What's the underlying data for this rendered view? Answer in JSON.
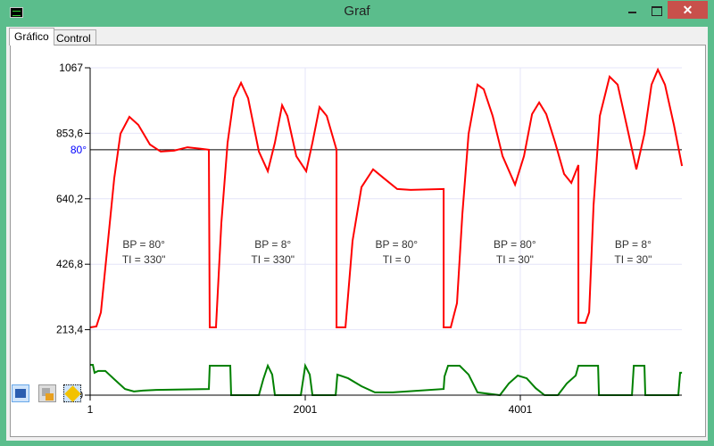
{
  "window": {
    "title": "Graf",
    "close": "✕"
  },
  "tabs": [
    {
      "label": "Gráfico"
    },
    {
      "label": "Control"
    }
  ],
  "toolbar": [
    "arrow-right-icon",
    "copy-icon",
    "export-icon"
  ],
  "colors": {
    "pv": "#ff0000",
    "output": "#008000",
    "setpoint": "#000000",
    "setpoint_label": "#0000ff"
  },
  "chart_data": {
    "type": "line",
    "x_ticks": [
      "1",
      "2001",
      "4001"
    ],
    "y_ticks": [
      "0",
      "213,4",
      "426,8",
      "640,2",
      "853,6",
      "1067"
    ],
    "xlim": [
      1,
      5504
    ],
    "ylim": [
      0,
      1067
    ],
    "grid": true,
    "setpoint": {
      "label": "80°",
      "value": 800
    },
    "annotations": [
      {
        "lines": [
          "BP = 80°",
          "TI = 330\""
        ],
        "x": 500
      },
      {
        "lines": [
          "BP = 8°",
          "TI = 330\""
        ],
        "x": 1700
      },
      {
        "lines": [
          "BP = 80°",
          "TI = 0"
        ],
        "x": 2850
      },
      {
        "lines": [
          "BP = 80°",
          "TI = 30\""
        ],
        "x": 3950
      },
      {
        "lines": [
          "BP = 8°",
          "TI = 30\""
        ],
        "x": 5050
      }
    ],
    "series": [
      {
        "name": "pv",
        "x": [
          1,
          59,
          101,
          159,
          225,
          283,
          366,
          449,
          557,
          657,
          781,
          906,
          1030,
          1105,
          1113,
          1171,
          1221,
          1279,
          1337,
          1404,
          1470,
          1570,
          1653,
          1719,
          1786,
          1835,
          1918,
          2010,
          2068,
          2134,
          2201,
          2292,
          2292,
          2375,
          2441,
          2524,
          2632,
          2732,
          2856,
          2981,
          3288,
          3288,
          3354,
          3412,
          3462,
          3520,
          3603,
          3661,
          3744,
          3836,
          3952,
          4035,
          4110,
          4176,
          4242,
          4325,
          4408,
          4475,
          4541,
          4541,
          4607,
          4641,
          4682,
          4740,
          4831,
          4906,
          4989,
          5080,
          5155,
          5221,
          5280,
          5346,
          5429,
          5504
        ],
        "y": [
          221,
          224,
          270,
          474,
          707,
          852,
          907,
          881,
          817,
          794,
          797,
          808,
          803,
          800,
          221,
          221,
          561,
          823,
          968,
          1018,
          968,
          794,
          730,
          823,
          945,
          910,
          779,
          730,
          823,
          939,
          910,
          800,
          221,
          221,
          503,
          678,
          736,
          707,
          672,
          669,
          672,
          221,
          221,
          300,
          590,
          852,
          1012,
          997,
          910,
          779,
          686,
          779,
          916,
          954,
          916,
          823,
          721,
          692,
          750,
          236,
          236,
          270,
          619,
          910,
          1038,
          1012,
          881,
          736,
          852,
          1012,
          1061,
          1012,
          881,
          747
        ]
      },
      {
        "name": "output",
        "x": [
          1,
          26,
          42,
          76,
          142,
          225,
          325,
          408,
          491,
          615,
          1105,
          1113,
          1304,
          1312,
          1570,
          1611,
          1653,
          1694,
          1719,
          1960,
          2001,
          2043,
          2068,
          2284,
          2300,
          2400,
          2524,
          2649,
          2815,
          3288,
          3296,
          3329,
          3437,
          3520,
          3603,
          3811,
          3894,
          3977,
          4060,
          4143,
          4226,
          4350,
          4433,
          4516,
          4541,
          4724,
          4732,
          5039,
          5056,
          5155,
          5163,
          5470,
          5487,
          5504
        ],
        "y": [
          99,
          99,
          73,
          79,
          79,
          52,
          20,
          12,
          15,
          17,
          20,
          96,
          96,
          0,
          0,
          52,
          96,
          67,
          0,
          0,
          96,
          67,
          0,
          0,
          67,
          55,
          29,
          9,
          9,
          20,
          61,
          96,
          96,
          67,
          9,
          0,
          38,
          64,
          55,
          23,
          0,
          0,
          38,
          64,
          96,
          96,
          0,
          0,
          96,
          96,
          0,
          0,
          73,
          73
        ]
      }
    ]
  }
}
